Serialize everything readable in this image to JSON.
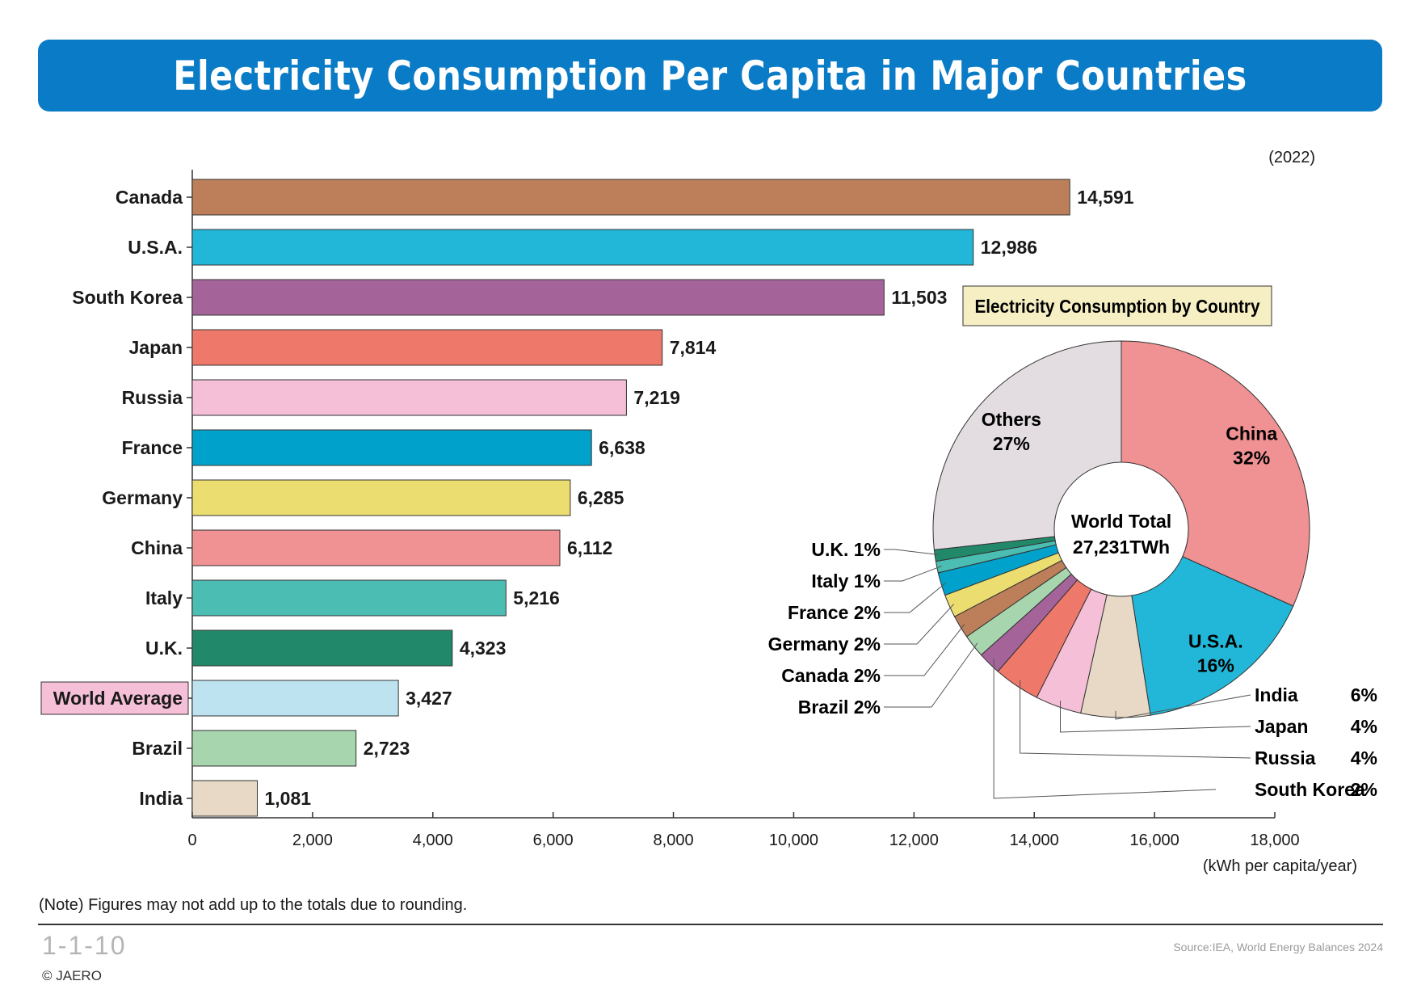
{
  "title": "Electricity Consumption Per Capita in Major Countries",
  "year_label": "(2022)",
  "note": "(Note) Figures may not add up to the totals due to rounding.",
  "figure_number": "1-1-10",
  "source": "Source:IEA, World Energy Balances 2024",
  "copyright": "© JAERO",
  "colors": {
    "banner": "#0a7bc6",
    "world_average_tag": "#f5bfd7",
    "pie_label_box": "#f6efc4"
  },
  "chart_data": [
    {
      "type": "bar",
      "orientation": "horizontal",
      "categories": [
        "Canada",
        "U.S.A.",
        "South Korea",
        "Japan",
        "Russia",
        "France",
        "Germany",
        "China",
        "Italy",
        "U.K.",
        "World Average",
        "Brazil",
        "India"
      ],
      "values": [
        14591,
        12986,
        11503,
        7814,
        7219,
        6638,
        6285,
        6112,
        5216,
        4323,
        3427,
        2723,
        1081
      ],
      "value_labels": [
        "14,591",
        "12,986",
        "11,503",
        "7,814",
        "7,219",
        "6,638",
        "6,285",
        "6,112",
        "5,216",
        "4,323",
        "3,427",
        "2,723",
        "1,081"
      ],
      "colors": [
        "#bc7f59",
        "#22b7d8",
        "#a46399",
        "#ee7869",
        "#f6bfd8",
        "#00a2cb",
        "#ecdd70",
        "#f09193",
        "#4bbdb2",
        "#21896a",
        "#bde3f0",
        "#a7d5ad",
        "#e7d9c6"
      ],
      "xlim": [
        0,
        18000
      ],
      "xticks": [
        "0",
        "2,000",
        "4,000",
        "6,000",
        "8,000",
        "10,000",
        "12,000",
        "14,000",
        "16,000",
        "18,000"
      ],
      "xlabel": "(kWh per capita/year)",
      "grid": false
    },
    {
      "type": "pie",
      "donut": true,
      "title": "Electricity Consumption by Country",
      "center_label": [
        "World Total",
        "27,231TWh"
      ],
      "slices": [
        {
          "label": "China",
          "value": 32,
          "pct": "32%",
          "color": "#f09193"
        },
        {
          "label": "U.S.A.",
          "value": 16,
          "pct": "16%",
          "color": "#22b7d8"
        },
        {
          "label": "India",
          "value": 6,
          "pct": "6%",
          "color": "#e7d9c6"
        },
        {
          "label": "Japan",
          "value": 4,
          "pct": "4%",
          "color": "#f6bfd8"
        },
        {
          "label": "Russia",
          "value": 4,
          "pct": "4%",
          "color": "#ee7869"
        },
        {
          "label": "South Korea",
          "value": 2,
          "pct": "2%",
          "color": "#a46399"
        },
        {
          "label": "Brazil",
          "value": 2,
          "pct": "2%",
          "color": "#a7d5ad"
        },
        {
          "label": "Canada",
          "value": 2,
          "pct": "2%",
          "color": "#bc7f59"
        },
        {
          "label": "Germany",
          "value": 2,
          "pct": "2%",
          "color": "#ecdd70"
        },
        {
          "label": "France",
          "value": 2,
          "pct": "2%",
          "color": "#00a2cb"
        },
        {
          "label": "Italy",
          "value": 1,
          "pct": "1%",
          "color": "#4bbdb2"
        },
        {
          "label": "U.K.",
          "value": 1,
          "pct": "1%",
          "color": "#21896a"
        },
        {
          "label": "Others",
          "value": 27,
          "pct": "27%",
          "color": "#e3dde1"
        }
      ]
    }
  ]
}
